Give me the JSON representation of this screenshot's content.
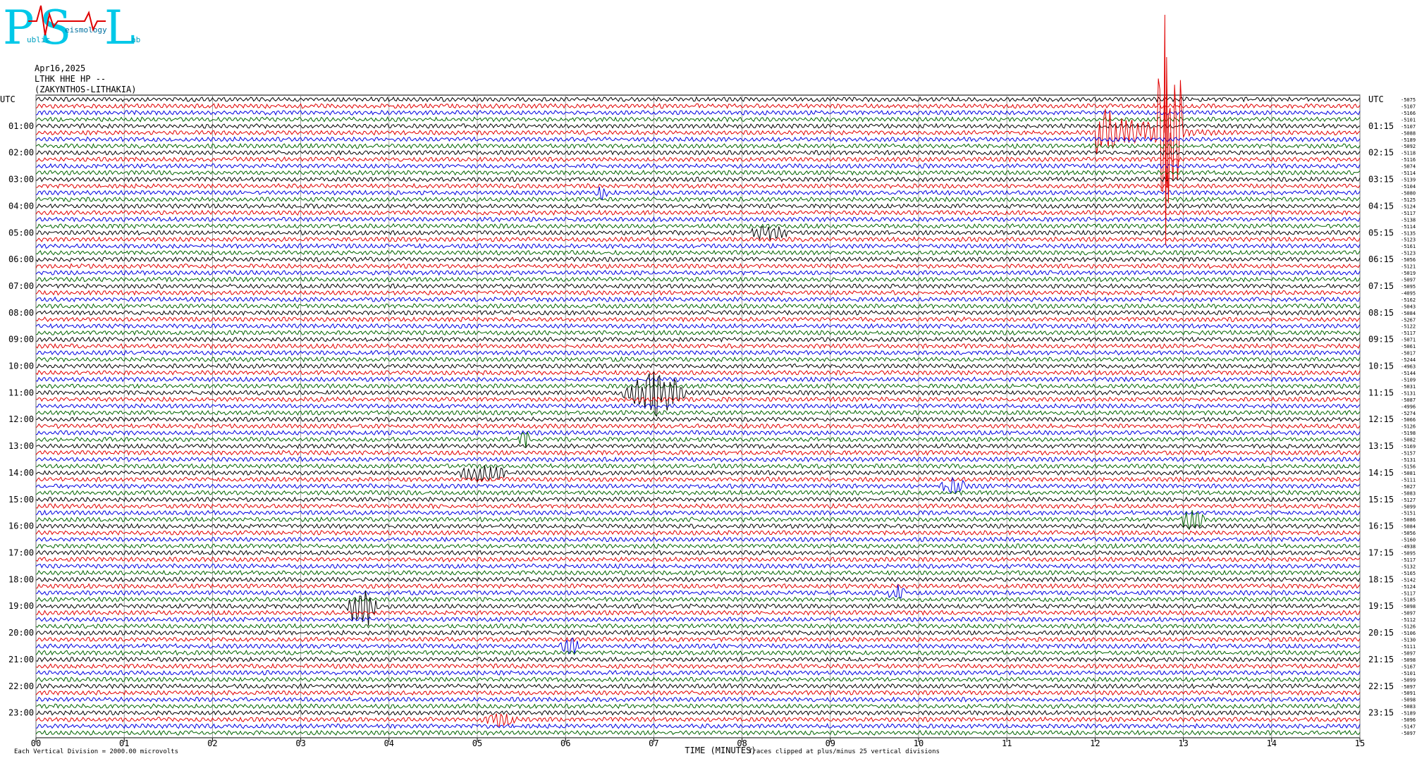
{
  "logo": {
    "letters": [
      "P",
      "S",
      "L"
    ],
    "small": [
      "ublic",
      "eismology",
      "ab"
    ]
  },
  "header": {
    "date": "Apr16,2025",
    "station": "LTHK HHE HP --",
    "location": "(ZAKYNTHOS-LITHAKIA)"
  },
  "left_labels": [
    "UTC",
    "01:00",
    "02:00",
    "03:00",
    "04:00",
    "05:00",
    "06:00",
    "07:00",
    "08:00",
    "09:00",
    "10:00",
    "11:00",
    "12:00",
    "13:00",
    "14:00",
    "15:00",
    "16:00",
    "17:00",
    "18:00",
    "19:00",
    "20:00",
    "21:00",
    "22:00",
    "23:00"
  ],
  "right_labels": [
    "UTC",
    "01:15",
    "02:15",
    "03:15",
    "04:15",
    "05:15",
    "06:15",
    "07:15",
    "08:15",
    "09:15",
    "10:15",
    "11:15",
    "12:15",
    "13:15",
    "14:15",
    "15:15",
    "16:15",
    "17:15",
    "18:15",
    "19:15",
    "20:15",
    "21:15",
    "22:15",
    "23:15"
  ],
  "x_ticks": [
    "00",
    "01",
    "02",
    "03",
    "04",
    "05",
    "06",
    "07",
    "08",
    "09",
    "10",
    "11",
    "12",
    "13",
    "14",
    "15"
  ],
  "x_axis_title": "TIME (MINUTES)",
  "footer_left": "Each Vertical Division = 2000.00 microvolts",
  "footer_right": "Traces clipped at plus/minus 25 vertical divisions",
  "trace_offsets": [
    "-5075",
    "-5107",
    "-5166",
    "-5101",
    "-5107",
    "-5088",
    "-5189",
    "-5092",
    "-5118",
    "-5116",
    "-5074",
    "-5114",
    "-5139",
    "-5104",
    "-5080",
    "-5125",
    "-5124",
    "-5117",
    "-5138",
    "-5114",
    "-5135",
    "-5123",
    "-5161",
    "-5123",
    "-5056",
    "-5121",
    "-5019",
    "-5097",
    "-5095",
    "-4095",
    "-5162",
    "-5043",
    "-5084",
    "-5267",
    "-5122",
    "-5117",
    "-5071",
    "-5061",
    "-5017",
    "-5244",
    "-4963",
    "-5144",
    "-5109",
    "-5031",
    "-5131",
    "-5087",
    "-4996",
    "-5274",
    "-5066",
    "-5126",
    "-5198",
    "-5082",
    "-5169",
    "-5157",
    "-5131",
    "-5156",
    "-5081",
    "-5111",
    "-5027",
    "-5083",
    "-5127",
    "-5099",
    "-5151",
    "-5086",
    "-5084",
    "-5056",
    "-5160",
    "-4938",
    "-5095",
    "-5117",
    "-5132",
    "-5165",
    "-5142",
    "-5124",
    "-5117",
    "-5185",
    "-5098",
    "-5097",
    "-5112",
    "-5126",
    "-5106",
    "-5130",
    "-5111",
    "-5097",
    "-5098",
    "-5167",
    "-5101",
    "-5099",
    "-5097",
    "-5091",
    "-5098",
    "-5083",
    "-5189",
    "-5096",
    "-5147",
    "-5097"
  ]
}
